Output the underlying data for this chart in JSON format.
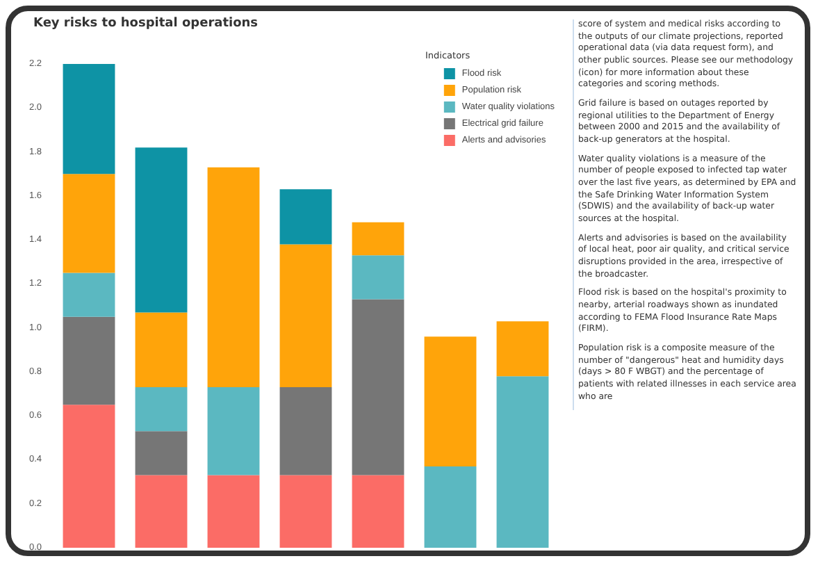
{
  "chart_data": {
    "type": "bar",
    "stacked": true,
    "title": "Key risks to hospital operations",
    "legend_title": "Indicators",
    "legend": "top right",
    "grid": false,
    "categories": [
      null,
      null,
      null,
      null,
      null,
      null,
      null
    ],
    "ylim": [
      0,
      2.2
    ],
    "yticks": [
      {
        "value": 0,
        "label": "0.0"
      },
      {
        "value": 0.2,
        "label": "0.2"
      },
      {
        "value": 0.4,
        "label": "0.4"
      },
      {
        "value": 0.6,
        "label": "0.6"
      },
      {
        "value": 0.8,
        "label": "0.8"
      },
      {
        "value": 1.0,
        "label": "1.0"
      },
      {
        "value": 1.2,
        "label": "1.2"
      },
      {
        "value": 1.4,
        "label": "1.4"
      },
      {
        "value": 1.6,
        "label": "1.6"
      },
      {
        "value": 1.8,
        "label": "1.8"
      },
      {
        "value": 2.0,
        "label": "2.0"
      },
      {
        "value": 2.2,
        "label": "2.2"
      }
    ],
    "series": [
      {
        "name": "Alerts and advisories",
        "color": "#fb6c66",
        "values": [
          0.65,
          0.33,
          0.33,
          0.33,
          0.33,
          0,
          0
        ]
      },
      {
        "name": "Electrical grid failure",
        "color": "#767676",
        "values": [
          0.4,
          0.2,
          0,
          0.4,
          0.8,
          0,
          0
        ]
      },
      {
        "name": "Water quality violations",
        "color": "#5bb8c1",
        "values": [
          0.2,
          0.2,
          0.4,
          0,
          0.2,
          0.37,
          0.78
        ]
      },
      {
        "name": "Population risk",
        "color": "#ffa40a",
        "values": [
          0.45,
          0.34,
          1.0,
          0.65,
          0.15,
          0.59,
          0.25
        ]
      },
      {
        "name": "Flood risk",
        "color": "#0e93a5",
        "values": [
          0.5,
          0.75,
          0,
          0.25,
          0,
          0,
          0
        ]
      }
    ],
    "annotations": [
      "score of system and medical risks according to the outputs of our climate projections, reported operational data (via data request form), and other public sources. Please see our methodology (icon) for more information about these categories and scoring methods.",
      "Grid failure is based on outages reported by regional utilities to the Department of Energy between 2000 and 2015 and the availability of back-up generators at the hospital.",
      "Water quality violations is a measure of the number of people exposed to infected tap water over the last five years, as determined by EPA and the Safe Drinking Water Information System (SDWIS) and the availability of back-up water sources at the hospital.",
      "Alerts and advisories is based on the availability of local heat, poor air quality, and critical service disruptions provided in the area, irrespective of the broadcaster.",
      "Flood risk is based on the hospital's proximity to nearby, arterial roadways shown as inundated according to FEMA Flood Insurance Rate Maps (FIRM).",
      "Population risk is a composite measure of the number of \"dangerous\" heat and humidity days (days > 80 F WBGT) and the percentage of patients with related illnesses in each service area who are"
    ]
  }
}
